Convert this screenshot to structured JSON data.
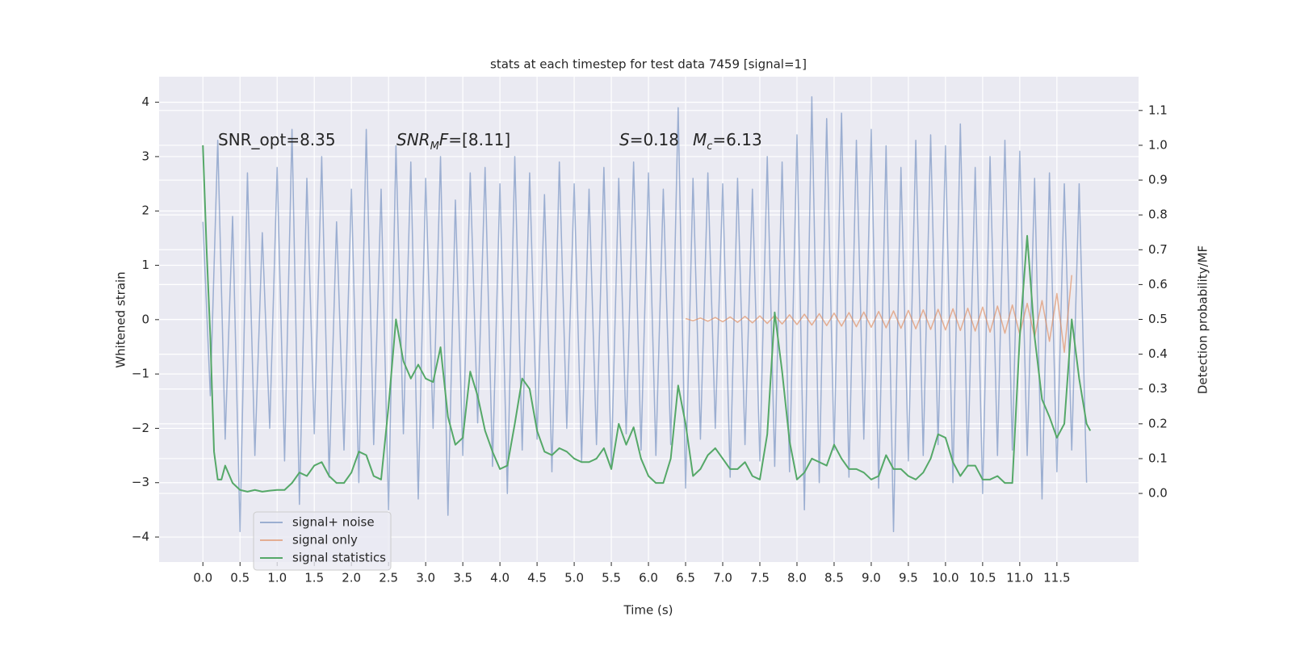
{
  "chart_data": {
    "type": "line",
    "title": "stats at each timestep for test data 7459 [signal=1]",
    "xlabel": "Time (s)",
    "ylabel": "Whitened strain",
    "y2label": "Detection probability/MF",
    "grid": true,
    "background": "#eaeaf2",
    "legend": "lower left",
    "xlim": [
      -0.59,
      12.6
    ],
    "ylim": [
      -4.46,
      4.47
    ],
    "y2lim": [
      -0.197,
      1.197
    ],
    "xticks": [
      {
        "value": 0,
        "label": "0.0"
      },
      0.5,
      {
        "value": 1,
        "label": "1.0"
      },
      1.5,
      {
        "value": 2,
        "label": "2.0"
      },
      2.5,
      {
        "value": 3,
        "label": "3.0"
      },
      3.5,
      {
        "value": 4,
        "label": "4.0"
      },
      4.5,
      {
        "value": 5,
        "label": "5.0"
      },
      5.5,
      {
        "value": 6,
        "label": "6.0"
      },
      6.5,
      {
        "value": 7,
        "label": "7.0"
      },
      7.5,
      {
        "value": 8,
        "label": "8.0"
      },
      8.5,
      {
        "value": 9,
        "label": "9.0"
      },
      9.5,
      {
        "value": 10,
        "label": "10.0"
      },
      10.5,
      {
        "value": 11,
        "label": "11.0"
      },
      11.5
    ],
    "yticks": [
      {
        "value": -4,
        "label": "−4"
      },
      {
        "value": -3,
        "label": "−3"
      },
      {
        "value": -2,
        "label": "−2"
      },
      {
        "value": -1,
        "label": "−1"
      },
      0,
      1,
      2,
      3,
      4
    ],
    "y2ticks": [
      {
        "value": 0,
        "label": "0.0"
      },
      0.1,
      0.2,
      0.3,
      0.4,
      0.5,
      0.6,
      0.7,
      0.8,
      0.9,
      {
        "value": 1,
        "label": "1.0"
      },
      1.1
    ],
    "annotations": [
      {
        "parts": [
          {
            "text": "SNR_opt=8.35"
          }
        ]
      },
      {
        "parts": [
          {
            "text": "SNR",
            "italic": true
          },
          {
            "text": "M",
            "italic": true,
            "sub": true
          },
          {
            "text": "F",
            "italic": true
          },
          {
            "text": "=[8.11]"
          }
        ]
      },
      {
        "parts": [
          {
            "text": "S",
            "italic": true
          },
          {
            "text": "=0.18"
          }
        ]
      },
      {
        "parts": [
          {
            "text": "M",
            "italic": true
          },
          {
            "text": "c",
            "italic": true,
            "sub": true
          },
          {
            "text": "=6.13"
          }
        ]
      }
    ],
    "series": [
      {
        "name": "signal+ noise",
        "color": "#4c72b0",
        "opacity": 0.5,
        "x": [
          0,
          0.1,
          0.2,
          0.3,
          0.4,
          0.5,
          0.6,
          0.7,
          0.8,
          0.9,
          1,
          1.1,
          1.2,
          1.3,
          1.4,
          1.5,
          1.6,
          1.7,
          1.8,
          1.9,
          2,
          2.1,
          2.2,
          2.3,
          2.4,
          2.5,
          2.6,
          2.7,
          2.8,
          2.9,
          3,
          3.1,
          3.2,
          3.3,
          3.4,
          3.5,
          3.6,
          3.7,
          3.8,
          3.9,
          4,
          4.1,
          4.2,
          4.3,
          4.4,
          4.5,
          4.6,
          4.7,
          4.8,
          4.9,
          5,
          5.1,
          5.2,
          5.3,
          5.4,
          5.5,
          5.6,
          5.7,
          5.8,
          5.9,
          6,
          6.1,
          6.2,
          6.3,
          6.4,
          6.5,
          6.6,
          6.7,
          6.8,
          6.9,
          7,
          7.1,
          7.2,
          7.3,
          7.4,
          7.5,
          7.6,
          7.7,
          7.8,
          7.9,
          8,
          8.1,
          8.2,
          8.3,
          8.4,
          8.5,
          8.6,
          8.7,
          8.8,
          8.9,
          9,
          9.1,
          9.2,
          9.3,
          9.4,
          9.5,
          9.6,
          9.7,
          9.8,
          9.9,
          10,
          10.1,
          10.2,
          10.3,
          10.4,
          10.5,
          10.6,
          10.7,
          10.8,
          10.9,
          11,
          11.1,
          11.2,
          11.3,
          11.4,
          11.5,
          11.6,
          11.7,
          11.8,
          11.9
        ],
        "values": [
          1.8,
          -1.4,
          3.3,
          -2.2,
          1.9,
          -3.9,
          2.7,
          -2.5,
          1.6,
          -2.0,
          2.8,
          -2.6,
          3.5,
          -3.4,
          2.6,
          -2.1,
          3.0,
          -2.9,
          1.8,
          -2.4,
          2.4,
          -3.0,
          3.5,
          -2.3,
          2.4,
          -3.5,
          3.2,
          -2.1,
          2.9,
          -3.3,
          2.6,
          -2.0,
          3.0,
          -3.6,
          2.2,
          -2.5,
          2.7,
          -1.9,
          2.8,
          -2.7,
          2.5,
          -3.2,
          3.0,
          -2.4,
          2.7,
          -2.2,
          2.3,
          -2.8,
          2.9,
          -2.0,
          2.5,
          -2.6,
          2.4,
          -2.3,
          2.8,
          -2.7,
          2.6,
          -2.1,
          2.9,
          -2.4,
          2.7,
          -2.5,
          2.4,
          -2.3,
          3.9,
          -3.1,
          2.6,
          -2.2,
          2.7,
          -2.0,
          2.5,
          -2.9,
          2.6,
          -2.3,
          2.4,
          -2.6,
          3.0,
          -2.7,
          2.9,
          -2.8,
          3.4,
          -3.5,
          4.1,
          -3.0,
          3.7,
          -2.4,
          3.8,
          -2.9,
          3.3,
          -2.2,
          3.5,
          -3.1,
          3.2,
          -3.9,
          2.8,
          -2.6,
          3.3,
          -2.5,
          3.4,
          -2.3,
          3.2,
          -3.0,
          3.6,
          -2.7,
          2.8,
          -3.2,
          3.0,
          -2.5,
          3.3,
          -2.4,
          3.1,
          -2.5,
          2.6,
          -3.3,
          2.7,
          -2.8,
          2.5,
          -2.4,
          2.5,
          -3.0
        ]
      },
      {
        "name": "signal only",
        "color": "#dd8452",
        "opacity": 0.6,
        "x": [
          6.5,
          6.6,
          6.7,
          6.8,
          6.9,
          7,
          7.1,
          7.2,
          7.3,
          7.4,
          7.5,
          7.6,
          7.7,
          7.8,
          7.9,
          8,
          8.1,
          8.2,
          8.3,
          8.4,
          8.5,
          8.6,
          8.7,
          8.8,
          8.9,
          9,
          9.1,
          9.2,
          9.3,
          9.4,
          9.5,
          9.6,
          9.7,
          9.8,
          9.9,
          10,
          10.1,
          10.2,
          10.3,
          10.4,
          10.5,
          10.6,
          10.7,
          10.8,
          10.9,
          11,
          11.1,
          11.2,
          11.3,
          11.4,
          11.5,
          11.6,
          11.7
        ],
        "values": [
          0.02,
          -0.02,
          0.03,
          -0.03,
          0.04,
          -0.04,
          0.05,
          -0.05,
          0.06,
          -0.06,
          0.07,
          -0.07,
          0.08,
          -0.08,
          0.09,
          -0.09,
          0.1,
          -0.1,
          0.11,
          -0.11,
          0.12,
          -0.12,
          0.13,
          -0.13,
          0.14,
          -0.14,
          0.15,
          -0.15,
          0.16,
          -0.16,
          0.17,
          -0.17,
          0.18,
          -0.18,
          0.19,
          -0.19,
          0.2,
          -0.2,
          0.21,
          -0.21,
          0.23,
          -0.23,
          0.25,
          -0.25,
          0.27,
          -0.27,
          0.3,
          -0.32,
          0.35,
          -0.4,
          0.48,
          -0.6,
          0.82
        ]
      },
      {
        "name": "signal statistics",
        "color": "#55a868",
        "opacity": 1,
        "axis": "y2",
        "x": [
          0,
          0.05,
          0.1,
          0.15,
          0.2,
          0.25,
          0.3,
          0.4,
          0.5,
          0.6,
          0.7,
          0.8,
          0.9,
          1,
          1.1,
          1.2,
          1.3,
          1.4,
          1.5,
          1.6,
          1.7,
          1.8,
          1.9,
          2,
          2.1,
          2.2,
          2.3,
          2.4,
          2.5,
          2.6,
          2.7,
          2.8,
          2.9,
          3,
          3.1,
          3.2,
          3.3,
          3.4,
          3.5,
          3.6,
          3.7,
          3.8,
          3.9,
          4,
          4.1,
          4.2,
          4.3,
          4.4,
          4.5,
          4.6,
          4.7,
          4.8,
          4.9,
          5,
          5.1,
          5.2,
          5.3,
          5.4,
          5.5,
          5.6,
          5.7,
          5.8,
          5.9,
          6,
          6.1,
          6.2,
          6.3,
          6.4,
          6.5,
          6.6,
          6.7,
          6.8,
          6.9,
          7,
          7.1,
          7.2,
          7.3,
          7.4,
          7.5,
          7.6,
          7.7,
          7.8,
          7.9,
          8,
          8.1,
          8.2,
          8.3,
          8.4,
          8.5,
          8.6,
          8.7,
          8.8,
          8.9,
          9,
          9.1,
          9.2,
          9.3,
          9.4,
          9.5,
          9.6,
          9.7,
          9.8,
          9.9,
          10,
          10.1,
          10.2,
          10.3,
          10.4,
          10.5,
          10.6,
          10.7,
          10.8,
          10.9,
          11,
          11.1,
          11.2,
          11.3,
          11.4,
          11.5,
          11.6,
          11.7,
          11.8,
          11.9,
          11.95
        ],
        "values": [
          1.0,
          0.7,
          0.45,
          0.12,
          0.04,
          0.04,
          0.08,
          0.03,
          0.01,
          0.005,
          0.01,
          0.005,
          0.008,
          0.01,
          0.01,
          0.03,
          0.06,
          0.05,
          0.08,
          0.09,
          0.05,
          0.03,
          0.03,
          0.06,
          0.12,
          0.11,
          0.05,
          0.04,
          0.25,
          0.5,
          0.38,
          0.33,
          0.37,
          0.33,
          0.32,
          0.42,
          0.22,
          0.14,
          0.16,
          0.35,
          0.28,
          0.18,
          0.12,
          0.07,
          0.08,
          0.2,
          0.33,
          0.3,
          0.18,
          0.12,
          0.11,
          0.13,
          0.12,
          0.1,
          0.09,
          0.09,
          0.1,
          0.13,
          0.07,
          0.2,
          0.14,
          0.19,
          0.1,
          0.05,
          0.03,
          0.03,
          0.1,
          0.31,
          0.2,
          0.05,
          0.07,
          0.11,
          0.13,
          0.1,
          0.07,
          0.07,
          0.09,
          0.05,
          0.04,
          0.17,
          0.52,
          0.35,
          0.15,
          0.04,
          0.06,
          0.1,
          0.09,
          0.08,
          0.14,
          0.1,
          0.07,
          0.07,
          0.06,
          0.04,
          0.05,
          0.11,
          0.07,
          0.07,
          0.05,
          0.04,
          0.06,
          0.1,
          0.17,
          0.16,
          0.09,
          0.05,
          0.08,
          0.08,
          0.04,
          0.04,
          0.05,
          0.03,
          0.03,
          0.45,
          0.74,
          0.45,
          0.27,
          0.22,
          0.16,
          0.2,
          0.5,
          0.33,
          0.2,
          0.18
        ]
      }
    ]
  }
}
